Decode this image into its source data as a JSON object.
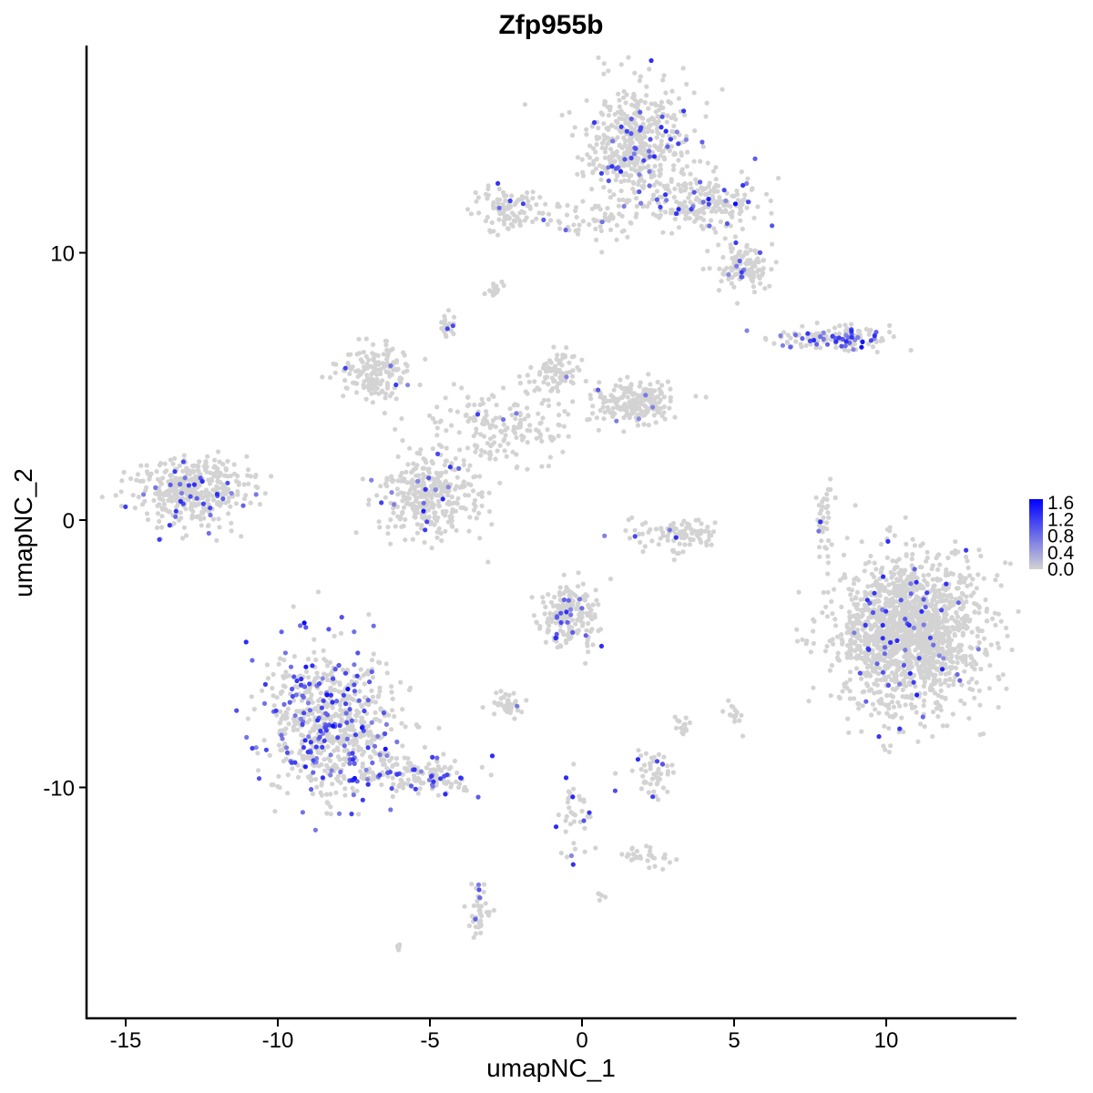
{
  "chart_data": {
    "type": "scatter",
    "title": "Zfp955b",
    "xlabel": "umapNC_1",
    "ylabel": "umapNC_2",
    "xlim": [
      -16.3,
      14.3
    ],
    "ylim": [
      -18.6,
      17.75
    ],
    "xticks": [
      -15,
      -10,
      -5,
      0,
      5,
      10
    ],
    "yticks": [
      -10,
      0,
      10
    ],
    "grid": false,
    "legend": {
      "placement": "right",
      "type": "colorbar",
      "ticks": [
        "1.6",
        "1.2",
        "0.8",
        "0.4",
        "0.0"
      ],
      "range": [
        0,
        1.6
      ],
      "low_color": "#d3d3d3",
      "high_color": "#0000ff"
    },
    "clusters": [
      {
        "x": 1.9,
        "y": 14.0,
        "sx": 0.9,
        "sy": 1.1,
        "n": 500,
        "expr": 0.09
      },
      {
        "x": 4.2,
        "y": 11.8,
        "sx": 0.9,
        "sy": 0.5,
        "n": 200,
        "expr": 0.1
      },
      {
        "x": 5.3,
        "y": 9.5,
        "sx": 0.5,
        "sy": 0.5,
        "n": 120,
        "expr": 0.06
      },
      {
        "x": 0.6,
        "y": 11.2,
        "sx": 1.2,
        "sy": 0.4,
        "n": 60,
        "expr": 0.03
      },
      {
        "x": -2.4,
        "y": 11.6,
        "sx": 0.6,
        "sy": 0.4,
        "n": 110,
        "expr": 0.04
      },
      {
        "x": -2.8,
        "y": 8.6,
        "sx": 0.15,
        "sy": 0.12,
        "n": 15,
        "expr": 0.0
      },
      {
        "x": -4.4,
        "y": 7.4,
        "sx": 0.15,
        "sy": 0.3,
        "n": 20,
        "expr": 0.1
      },
      {
        "x": 8.3,
        "y": 6.8,
        "sx": 1.0,
        "sy": 0.2,
        "n": 150,
        "expr": 0.3
      },
      {
        "x": -6.8,
        "y": 5.5,
        "sx": 0.6,
        "sy": 0.5,
        "n": 160,
        "expr": 0.03
      },
      {
        "x": -2.6,
        "y": 3.4,
        "sx": 1.2,
        "sy": 0.7,
        "n": 180,
        "expr": 0.02
      },
      {
        "x": -0.8,
        "y": 5.5,
        "sx": 0.4,
        "sy": 0.4,
        "n": 80,
        "expr": 0.05
      },
      {
        "x": 1.8,
        "y": 4.4,
        "sx": 0.7,
        "sy": 0.4,
        "n": 200,
        "expr": 0.03
      },
      {
        "x": -5.0,
        "y": 0.9,
        "sx": 0.8,
        "sy": 0.8,
        "n": 350,
        "expr": 0.04
      },
      {
        "x": -12.8,
        "y": 1.1,
        "sx": 0.9,
        "sy": 0.6,
        "n": 400,
        "expr": 0.08
      },
      {
        "x": 3.2,
        "y": -0.5,
        "sx": 0.7,
        "sy": 0.3,
        "n": 100,
        "expr": 0.04
      },
      {
        "x": 8.0,
        "y": 0.0,
        "sx": 0.15,
        "sy": 0.8,
        "n": 40,
        "expr": 0.05
      },
      {
        "x": 10.8,
        "y": -4.2,
        "sx": 1.2,
        "sy": 1.4,
        "n": 1600,
        "expr": 0.03
      },
      {
        "x": -0.4,
        "y": -3.6,
        "sx": 0.5,
        "sy": 0.6,
        "n": 200,
        "expr": 0.1
      },
      {
        "x": -8.2,
        "y": -7.6,
        "sx": 1.1,
        "sy": 1.3,
        "n": 700,
        "expr": 0.22
      },
      {
        "x": -5.5,
        "y": -9.6,
        "sx": 0.9,
        "sy": 0.4,
        "n": 150,
        "expr": 0.2
      },
      {
        "x": -2.5,
        "y": -6.9,
        "sx": 0.3,
        "sy": 0.2,
        "n": 40,
        "expr": 0.02
      },
      {
        "x": 2.4,
        "y": -9.5,
        "sx": 0.4,
        "sy": 0.4,
        "n": 50,
        "expr": 0.1
      },
      {
        "x": 2.2,
        "y": -12.6,
        "sx": 0.4,
        "sy": 0.2,
        "n": 30,
        "expr": 0.0
      },
      {
        "x": -3.4,
        "y": -14.6,
        "sx": 0.2,
        "sy": 0.5,
        "n": 40,
        "expr": 0.15
      },
      {
        "x": -6.0,
        "y": -16.0,
        "sx": 0.1,
        "sy": 0.1,
        "n": 6,
        "expr": 0.2
      },
      {
        "x": -0.2,
        "y": -11.0,
        "sx": 0.3,
        "sy": 1.0,
        "n": 40,
        "expr": 0.1
      },
      {
        "x": 5.0,
        "y": -7.3,
        "sx": 0.15,
        "sy": 0.25,
        "n": 15,
        "expr": 0.1
      },
      {
        "x": 3.3,
        "y": -7.6,
        "sx": 0.12,
        "sy": 0.3,
        "n": 15,
        "expr": 0.1
      },
      {
        "x": 0.6,
        "y": -14.0,
        "sx": 0.08,
        "sy": 0.1,
        "n": 5,
        "expr": 0.2
      }
    ]
  }
}
